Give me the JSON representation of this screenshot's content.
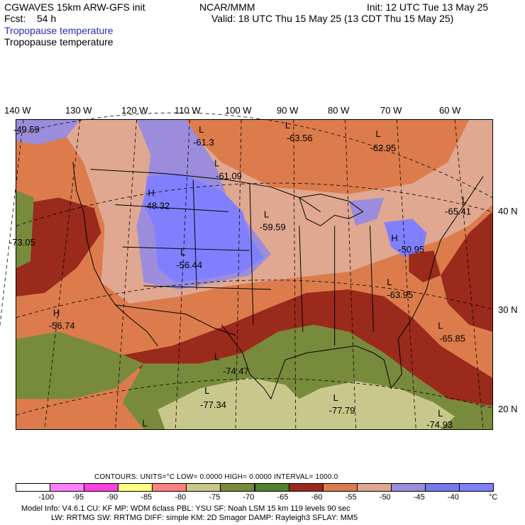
{
  "header": {
    "line1_left": "CGWAVES 15km ARW-GFS init",
    "line1_center": "NCAR/MMM",
    "line1_right": "Init: 12 UTC Tue 13 May 25",
    "line2_left": "Fcst:    54 h",
    "line2_right": "Valid: 18 UTC Thu 15 May 25 (13 CDT Thu 15 May 25)",
    "field_label_blue": "Tropopause temperature",
    "field_label_black": "Tropopause temperature"
  },
  "longitude_labels": [
    "140 W",
    "130 W",
    "120 W",
    "110 W",
    "100 W",
    "90 W",
    "80 W",
    "70 W",
    "60 W"
  ],
  "latitude_labels": [
    "40 N",
    "30 N",
    "20 N"
  ],
  "map": {
    "annotations": [
      {
        "symbol": "L",
        "value": "-61.3"
      },
      {
        "symbol": "L",
        "value": "-63.56"
      },
      {
        "symbol": "L",
        "value": "-62.95"
      },
      {
        "symbol": "L",
        "value": "-61.09"
      },
      {
        "symbol": "H",
        "value": "-48.32"
      },
      {
        "symbol": "L",
        "value": "-59.59"
      },
      {
        "symbol": "L",
        "value": "-65.41"
      },
      {
        "symbol": "",
        "value": "-49.59"
      },
      {
        "symbol": "",
        "value": "-73.05"
      },
      {
        "symbol": "L",
        "value": "-56.44"
      },
      {
        "symbol": "H",
        "value": "-50.95"
      },
      {
        "symbol": "L",
        "value": "-63.95"
      },
      {
        "symbol": "H",
        "value": "-56.74"
      },
      {
        "symbol": "L",
        "value": "-65.85"
      },
      {
        "symbol": "L",
        "value": "-74.47"
      },
      {
        "symbol": "L",
        "value": "-77.34"
      },
      {
        "symbol": "L",
        "value": "-77.79"
      },
      {
        "symbol": "L",
        "value": "-74.93"
      },
      {
        "symbol": "L",
        "value": ""
      }
    ]
  },
  "contours_line": "CONTOURS:  UNITS=°C  LOW=  0.0000       HIGH=  0.0000       INTERVAL=  1000.0",
  "colorbar": {
    "colors": [
      "#ffffff",
      "#ff80ff",
      "#ff40e0",
      "#ffff80",
      "#ff8080",
      "#c8c88c",
      "#788a3c",
      "#508232",
      "#9a2a1c",
      "#dc7c4c",
      "#e0a890",
      "#9c8cdc",
      "#7878ee",
      "#8080ff"
    ],
    "ticks": [
      "-100",
      "-95",
      "-90",
      "-85",
      "-80",
      "-75",
      "-70",
      "-65",
      "-60",
      "-55",
      "-50",
      "-45",
      "-40",
      "°C"
    ]
  },
  "footer": {
    "line1": "Model Info: V4.6.1     CU: KF      MP: WDM 6class   PBL: YSU        SF: Noah LSM     15 km   119 levels    90 sec",
    "line2": "LW: RRTMG     SW: RRTMG   DIFF: simple KM: 2D Smagor DAMP: Rayleigh3  SFLAY: MM5"
  }
}
